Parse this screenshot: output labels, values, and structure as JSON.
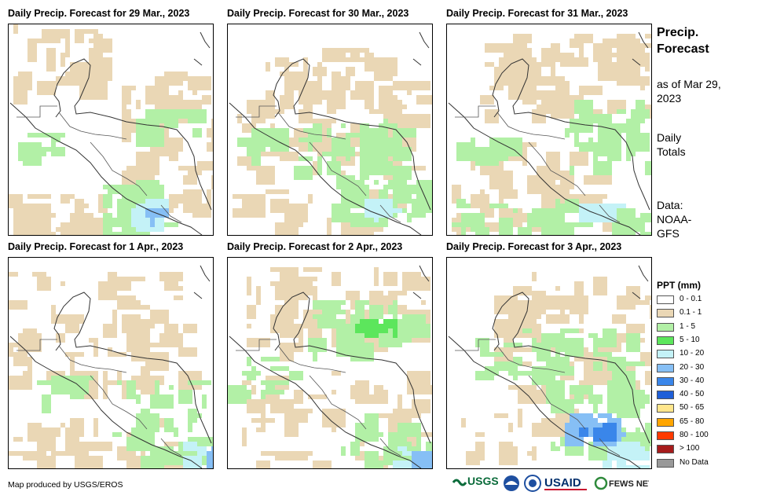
{
  "panels": [
    {
      "title": "Daily Precip. Forecast for 29 Mar., 2023"
    },
    {
      "title": "Daily Precip. Forecast for 30 Mar., 2023"
    },
    {
      "title": "Daily Precip. Forecast for 31 Mar., 2023"
    },
    {
      "title": "Daily Precip. Forecast for 1 Apr., 2023"
    },
    {
      "title": "Daily Precip. Forecast for 2 Apr., 2023"
    },
    {
      "title": "Daily Precip. Forecast for 3 Apr., 2023"
    }
  ],
  "sidebar": {
    "title": "Precip. Forecast",
    "as_of": "as of Mar 29, 2023",
    "totals": "Daily Totals",
    "data_source": "Data: NOAA-GFS"
  },
  "legend": {
    "title": "PPT (mm)",
    "items": [
      {
        "label": "0 - 0.1",
        "color": "#ffffff"
      },
      {
        "label": "0.1 - 1",
        "color": "#ead7b5"
      },
      {
        "label": "1 - 5",
        "color": "#b2f0a6"
      },
      {
        "label": "5 - 10",
        "color": "#5ce65c"
      },
      {
        "label": "10 - 20",
        "color": "#c4f2f7"
      },
      {
        "label": "20 - 30",
        "color": "#86bff5"
      },
      {
        "label": "30 - 40",
        "color": "#3a86ea"
      },
      {
        "label": "40 - 50",
        "color": "#1f5fd8"
      },
      {
        "label": "50 - 65",
        "color": "#ffe68c"
      },
      {
        "label": "65 - 80",
        "color": "#ffa500"
      },
      {
        "label": "80 - 100",
        "color": "#ff3a00"
      },
      {
        "label": "> 100",
        "color": "#a61c1c"
      },
      {
        "label": "No Data",
        "color": "#999999"
      }
    ]
  },
  "credit": "Map produced by USGS/EROS",
  "logos": {
    "usgs": "USGS",
    "usaid": "USAID",
    "fewsnet": "FEWS NET"
  }
}
